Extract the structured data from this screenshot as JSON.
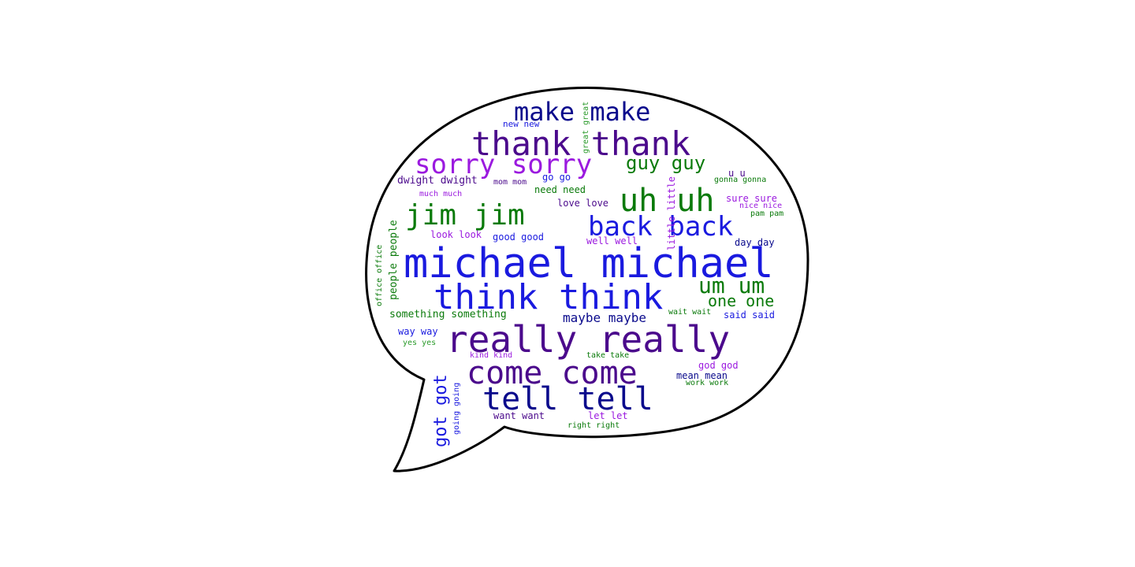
{
  "chart_data": {
    "type": "wordcloud",
    "shape": "speech-bubble",
    "palette": {
      "blue": "#1a1adf",
      "navy": "#0a0a8c",
      "purple": "#4b0a8c",
      "violet": "#9b1adf",
      "green": "#0a7a0a",
      "lightgreen": "#2a9a2a"
    },
    "words": [
      {
        "text": "michael michael",
        "weight": 100,
        "color": "blue"
      },
      {
        "text": "really really",
        "weight": 88,
        "color": "purple"
      },
      {
        "text": "think think",
        "weight": 86,
        "color": "blue"
      },
      {
        "text": "thank thank",
        "weight": 82,
        "color": "purple"
      },
      {
        "text": "tell tell",
        "weight": 78,
        "color": "navy"
      },
      {
        "text": "come come",
        "weight": 76,
        "color": "purple"
      },
      {
        "text": "uh uh",
        "weight": 74,
        "color": "green"
      },
      {
        "text": "jim jim",
        "weight": 70,
        "color": "green"
      },
      {
        "text": "sorry sorry",
        "weight": 66,
        "color": "violet"
      },
      {
        "text": "back back",
        "weight": 64,
        "color": "blue"
      },
      {
        "text": "make make",
        "weight": 58,
        "color": "navy"
      },
      {
        "text": "um um",
        "weight": 56,
        "color": "green"
      },
      {
        "text": "got got",
        "weight": 48,
        "color": "blue"
      },
      {
        "text": "guy guy",
        "weight": 45,
        "color": "green"
      },
      {
        "text": "one one",
        "weight": 40,
        "color": "green"
      },
      {
        "text": "maybe maybe",
        "weight": 30,
        "color": "navy"
      },
      {
        "text": "something something",
        "weight": 24,
        "color": "green"
      },
      {
        "text": "dwight dwight",
        "weight": 24,
        "color": "purple"
      },
      {
        "text": "people people",
        "weight": 24,
        "color": "green"
      },
      {
        "text": "need need",
        "weight": 23,
        "color": "green"
      },
      {
        "text": "love love",
        "weight": 23,
        "color": "purple"
      },
      {
        "text": "good good",
        "weight": 23,
        "color": "blue"
      },
      {
        "text": "well well",
        "weight": 23,
        "color": "violet"
      },
      {
        "text": "look look",
        "weight": 23,
        "color": "violet"
      },
      {
        "text": "way way",
        "weight": 23,
        "color": "blue"
      },
      {
        "text": "day day",
        "weight": 23,
        "color": "navy"
      },
      {
        "text": "said said",
        "weight": 23,
        "color": "blue"
      },
      {
        "text": "sure sure",
        "weight": 23,
        "color": "violet"
      },
      {
        "text": "god god",
        "weight": 23,
        "color": "violet"
      },
      {
        "text": "mean mean",
        "weight": 23,
        "color": "navy"
      },
      {
        "text": "want want",
        "weight": 23,
        "color": "purple"
      },
      {
        "text": "let let",
        "weight": 23,
        "color": "violet"
      },
      {
        "text": "little little",
        "weight": 22,
        "color": "violet"
      },
      {
        "text": "go go",
        "weight": 22,
        "color": "blue"
      },
      {
        "text": "u u",
        "weight": 22,
        "color": "purple"
      },
      {
        "text": "new new",
        "weight": 20,
        "color": "blue"
      },
      {
        "text": "great great",
        "weight": 18,
        "color": "lightgreen"
      },
      {
        "text": "gonna gonna",
        "weight": 18,
        "color": "green"
      },
      {
        "text": "mom mom",
        "weight": 18,
        "color": "purple"
      },
      {
        "text": "much much",
        "weight": 18,
        "color": "violet"
      },
      {
        "text": "nice nice",
        "weight": 18,
        "color": "violet"
      },
      {
        "text": "pam pam",
        "weight": 18,
        "color": "green"
      },
      {
        "text": "office office",
        "weight": 18,
        "color": "green"
      },
      {
        "text": "wait wait",
        "weight": 18,
        "color": "green"
      },
      {
        "text": "yes yes",
        "weight": 18,
        "color": "lightgreen"
      },
      {
        "text": "kind kind",
        "weight": 18,
        "color": "violet"
      },
      {
        "text": "take take",
        "weight": 18,
        "color": "green"
      },
      {
        "text": "work work",
        "weight": 18,
        "color": "green"
      },
      {
        "text": "right right",
        "weight": 18,
        "color": "green"
      },
      {
        "text": "going going",
        "weight": 18,
        "color": "blue"
      }
    ]
  }
}
